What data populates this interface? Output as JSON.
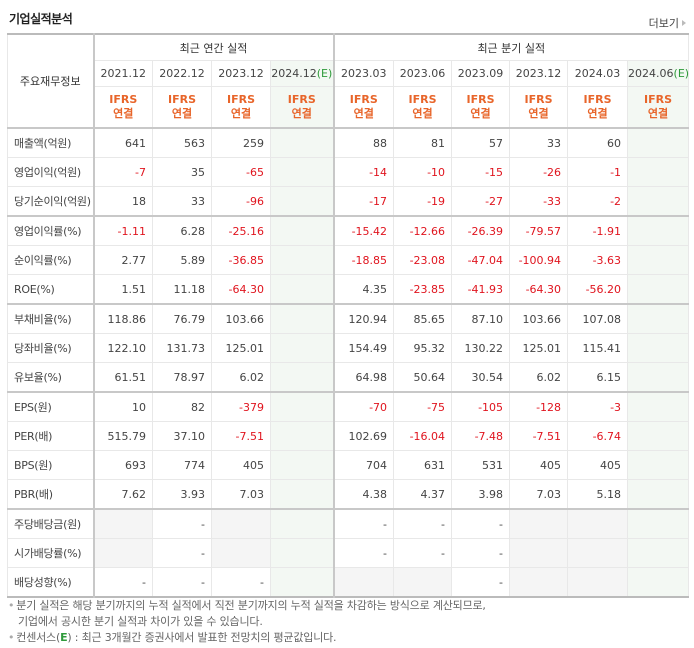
{
  "header": {
    "title": "기업실적분석",
    "more_link": "더보기"
  },
  "table": {
    "corner_label": "주요재무정보",
    "groups": {
      "annual": "최근 연간 실적",
      "quarterly": "최근 분기 실적"
    },
    "annual_periods": [
      {
        "label": "2021.12",
        "estimate": ""
      },
      {
        "label": "2022.12",
        "estimate": ""
      },
      {
        "label": "2023.12",
        "estimate": ""
      },
      {
        "label": "2024.12",
        "estimate": "(E)"
      }
    ],
    "quarter_periods": [
      {
        "label": "2023.03",
        "estimate": ""
      },
      {
        "label": "2023.06",
        "estimate": ""
      },
      {
        "label": "2023.09",
        "estimate": ""
      },
      {
        "label": "2023.12",
        "estimate": ""
      },
      {
        "label": "2024.03",
        "estimate": ""
      },
      {
        "label": "2024.06",
        "estimate": "(E)"
      }
    ],
    "basis_top": "IFRS",
    "basis_bottom": "연결",
    "rows": [
      {
        "label": "매출액(억원)",
        "values": [
          "641",
          "563",
          "259",
          "",
          "88",
          "81",
          "57",
          "33",
          "60",
          ""
        ]
      },
      {
        "label": "영업이익(억원)",
        "values": [
          "-7",
          "35",
          "-65",
          "",
          "-14",
          "-10",
          "-15",
          "-26",
          "-1",
          ""
        ]
      },
      {
        "label": "당기순이익(억원)",
        "values": [
          "18",
          "33",
          "-96",
          "",
          "-17",
          "-19",
          "-27",
          "-33",
          "-2",
          ""
        ]
      },
      {
        "label": "영업이익률(%)",
        "values": [
          "-1.11",
          "6.28",
          "-25.16",
          "",
          "-15.42",
          "-12.66",
          "-26.39",
          "-79.57",
          "-1.91",
          ""
        ]
      },
      {
        "label": "순이익률(%)",
        "values": [
          "2.77",
          "5.89",
          "-36.85",
          "",
          "-18.85",
          "-23.08",
          "-47.04",
          "-100.94",
          "-3.63",
          ""
        ]
      },
      {
        "label": "ROE(%)",
        "values": [
          "1.51",
          "11.18",
          "-64.30",
          "",
          "4.35",
          "-23.85",
          "-41.93",
          "-64.30",
          "-56.20",
          ""
        ]
      },
      {
        "label": "부채비율(%)",
        "values": [
          "118.86",
          "76.79",
          "103.66",
          "",
          "120.94",
          "85.65",
          "87.10",
          "103.66",
          "107.08",
          ""
        ]
      },
      {
        "label": "당좌비율(%)",
        "values": [
          "122.10",
          "131.73",
          "125.01",
          "",
          "154.49",
          "95.32",
          "130.22",
          "125.01",
          "115.41",
          ""
        ]
      },
      {
        "label": "유보율(%)",
        "values": [
          "61.51",
          "78.97",
          "6.02",
          "",
          "64.98",
          "50.64",
          "30.54",
          "6.02",
          "6.15",
          ""
        ]
      },
      {
        "label": "EPS(원)",
        "values": [
          "10",
          "82",
          "-379",
          "",
          "-70",
          "-75",
          "-105",
          "-128",
          "-3",
          ""
        ]
      },
      {
        "label": "PER(배)",
        "values": [
          "515.79",
          "37.10",
          "-7.51",
          "",
          "102.69",
          "-16.04",
          "-7.48",
          "-7.51",
          "-6.74",
          ""
        ]
      },
      {
        "label": "BPS(원)",
        "values": [
          "693",
          "774",
          "405",
          "",
          "704",
          "631",
          "531",
          "405",
          "405",
          ""
        ]
      },
      {
        "label": "PBR(배)",
        "values": [
          "7.62",
          "3.93",
          "7.03",
          "",
          "4.38",
          "4.37",
          "3.98",
          "7.03",
          "5.18",
          ""
        ]
      },
      {
        "label": "주당배당금(원)",
        "values": [
          "",
          "-",
          "",
          "",
          "-",
          "-",
          "-",
          "",
          "",
          ""
        ]
      },
      {
        "label": "시가배당률(%)",
        "values": [
          "",
          "-",
          "",
          "",
          "-",
          "-",
          "-",
          "",
          "",
          ""
        ]
      },
      {
        "label": "배당성향(%)",
        "values": [
          "-",
          "-",
          "-",
          "",
          "",
          "",
          "-",
          "",
          "",
          ""
        ]
      }
    ]
  },
  "notes": {
    "line1": "분기 실적은 해당 분기까지의 누적 실적에서 직전 분기까지의 누적 실적을 차감하는 방식으로 계산되므로,",
    "line2": "기업에서 공시한 분기 실적과 차이가 있을 수 있습니다.",
    "line3_prefix": "컨센서스(",
    "line3_e": "E",
    "line3_suffix": ") : 최근 3개월간 증권사에서 발표한 전망치의 평균값입니다."
  },
  "colors": {
    "negative": "#e0141e",
    "ifrs": "#e8652a",
    "estimate": "#2e9a3a",
    "estimate_bg": "#f3f8f3"
  }
}
